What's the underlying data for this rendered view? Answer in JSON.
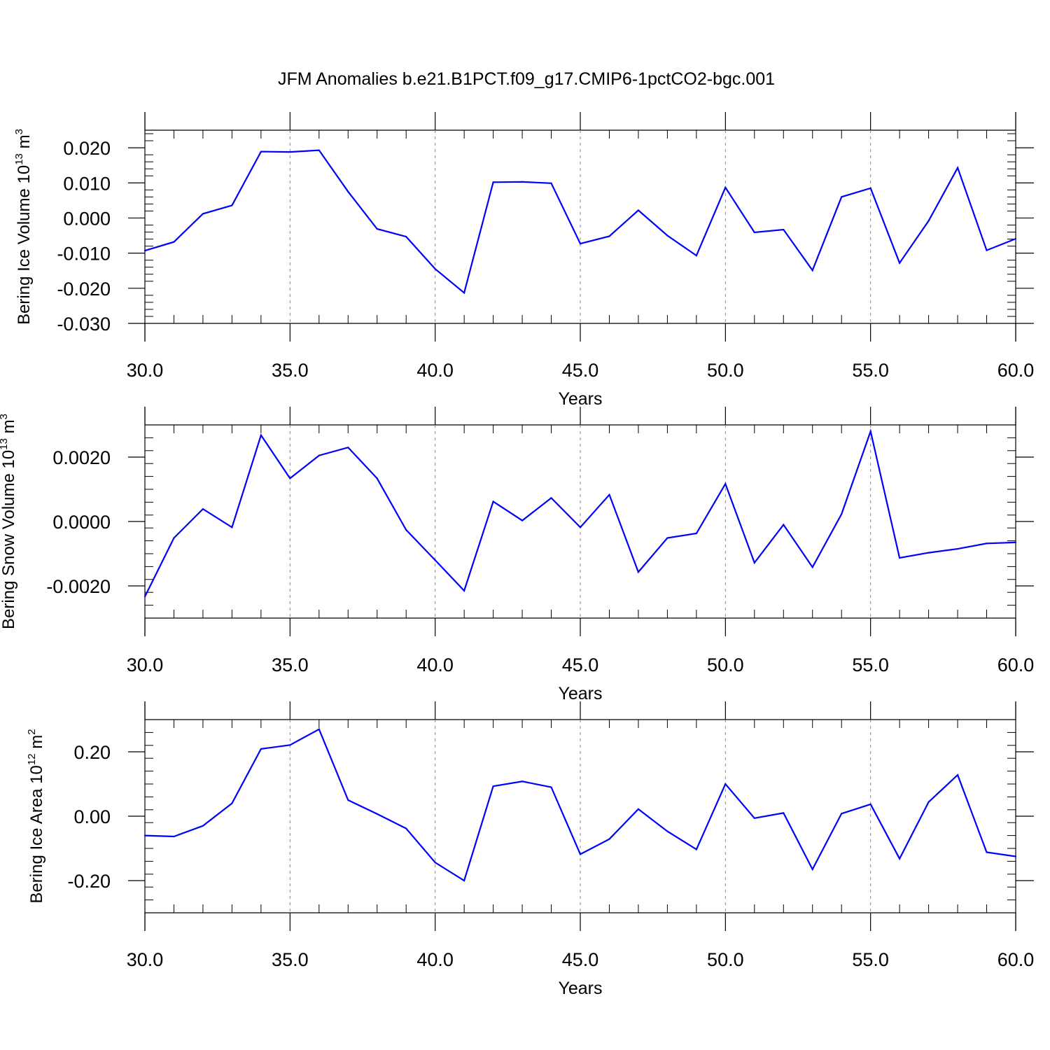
{
  "title": "JFM Anomalies b.e21.B1PCT.f09_g17.CMIP6-1pctCO2-bgc.001",
  "colors": {
    "series": "#0000ff",
    "axis": "#000000",
    "grid": "#888888"
  },
  "chart_data": [
    {
      "type": "line",
      "ylabel": {
        "text": "Bering Ice Volume 10",
        "exp": "13",
        "unit": " m",
        "unit_exp": "3"
      },
      "xlabel": "Years",
      "xlim": [
        30,
        60
      ],
      "ylim": [
        -0.03,
        0.025
      ],
      "yticks": [
        -0.03,
        -0.02,
        -0.01,
        0.0,
        0.01,
        0.02
      ],
      "ytick_labels": [
        "-0.030",
        "-0.020",
        "-0.010",
        "0.000",
        "0.010",
        "0.020"
      ],
      "xticks": [
        30,
        35,
        40,
        45,
        50,
        55,
        60
      ],
      "xtick_labels": [
        "30.0",
        "35.0",
        "40.0",
        "45.0",
        "50.0",
        "55.0",
        "60.0"
      ],
      "grid": "vertical dashed at major x ticks",
      "x": [
        30,
        31,
        32,
        33,
        34,
        35,
        36,
        37,
        38,
        39,
        40,
        41,
        42,
        43,
        44,
        45,
        46,
        47,
        48,
        49,
        50,
        51,
        52,
        53,
        54,
        55,
        56,
        57,
        58,
        59,
        60
      ],
      "values": [
        -0.0093,
        -0.0068,
        0.0012,
        0.0036,
        0.0189,
        0.0188,
        0.0193,
        0.0075,
        -0.0031,
        -0.0053,
        -0.0145,
        -0.0213,
        0.0102,
        0.0103,
        0.0099,
        -0.0073,
        -0.0052,
        0.0022,
        -0.005,
        -0.0107,
        0.0087,
        -0.0041,
        -0.0033,
        -0.0149,
        0.006,
        0.0085,
        -0.0128,
        -0.0008,
        0.0143,
        -0.0092,
        -0.0059
      ]
    },
    {
      "type": "line",
      "ylabel": {
        "text": "Bering Snow Volume 10",
        "exp": "13",
        "unit": " m",
        "unit_exp": "3"
      },
      "xlabel": "Years",
      "xlim": [
        30,
        60
      ],
      "ylim": [
        -0.003,
        0.003
      ],
      "yticks": [
        -0.002,
        0.0,
        0.002
      ],
      "ytick_labels": [
        "-0.0020",
        "0.0000",
        "0.0020"
      ],
      "xticks": [
        30,
        35,
        40,
        45,
        50,
        55,
        60
      ],
      "xtick_labels": [
        "30.0",
        "35.0",
        "40.0",
        "45.0",
        "50.0",
        "55.0",
        "60.0"
      ],
      "grid": "vertical dashed at major x ticks",
      "x": [
        30,
        31,
        32,
        33,
        34,
        35,
        36,
        37,
        38,
        39,
        40,
        41,
        42,
        43,
        44,
        45,
        46,
        47,
        48,
        49,
        50,
        51,
        52,
        53,
        54,
        55,
        56,
        57,
        58,
        59,
        60
      ],
      "values": [
        -0.00233,
        -0.00051,
        0.00039,
        -0.00018,
        0.00268,
        0.00134,
        0.00205,
        0.0023,
        0.00134,
        -0.00026,
        -0.0012,
        -0.00215,
        0.00062,
        3e-05,
        0.00073,
        -0.00018,
        0.00083,
        -0.00157,
        -0.00051,
        -0.00037,
        0.00117,
        -0.00128,
        -0.0001,
        -0.00142,
        0.00023,
        0.0028,
        -0.00113,
        -0.00097,
        -0.00085,
        -0.00068,
        -0.00065
      ]
    },
    {
      "type": "line",
      "ylabel": {
        "text": "Bering Ice Area 10",
        "exp": "12",
        "unit": " m",
        "unit_exp": "2"
      },
      "xlabel": "Years",
      "xlim": [
        30,
        60
      ],
      "ylim": [
        -0.3,
        0.3
      ],
      "yticks": [
        -0.2,
        0.0,
        0.2
      ],
      "ytick_labels": [
        "-0.20",
        "0.00",
        "0.20"
      ],
      "xticks": [
        30,
        35,
        40,
        45,
        50,
        55,
        60
      ],
      "xtick_labels": [
        "30.0",
        "35.0",
        "40.0",
        "45.0",
        "50.0",
        "55.0",
        "60.0"
      ],
      "grid": "vertical dashed at major x ticks",
      "x": [
        30,
        31,
        32,
        33,
        34,
        35,
        36,
        37,
        38,
        39,
        40,
        41,
        42,
        43,
        44,
        45,
        46,
        47,
        48,
        49,
        50,
        51,
        52,
        53,
        54,
        55,
        56,
        57,
        58,
        59,
        60
      ],
      "values": [
        -0.06,
        -0.063,
        -0.03,
        0.04,
        0.209,
        0.221,
        0.27,
        0.05,
        0.007,
        -0.038,
        -0.144,
        -0.2,
        0.093,
        0.108,
        0.09,
        -0.118,
        -0.071,
        0.022,
        -0.047,
        -0.103,
        0.1,
        -0.006,
        0.01,
        -0.165,
        0.008,
        0.037,
        -0.132,
        0.044,
        0.128,
        -0.112,
        -0.125
      ]
    }
  ]
}
